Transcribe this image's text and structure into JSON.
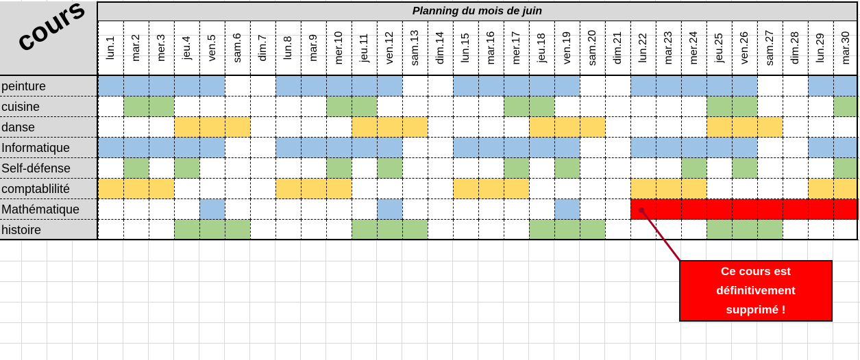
{
  "corner_title": "cours",
  "planning_title": "Planning du mois de juin",
  "days": [
    "lun.1",
    "mar.2",
    "mer.3",
    "jeu.4",
    "ven.5",
    "sam.6",
    "dim.7",
    "lun.8",
    "mar.9",
    "mer.10",
    "jeu.11",
    "ven.12",
    "sam.13",
    "dim.14",
    "lun.15",
    "mar.16",
    "mer.17",
    "jeu.18",
    "ven.19",
    "sam.20",
    "dim.21",
    "lun.22",
    "mar.23",
    "mer.24",
    "jeu.25",
    "ven.26",
    "sam.27",
    "dim.28",
    "lun.29",
    "mar.30"
  ],
  "colors": {
    "B": "#9dc3e6",
    "G": "#a9d18e",
    "Y": "#ffd966",
    "R": "#ff0000",
    "header_gray": "#d9d9d9"
  },
  "courses": [
    {
      "name": "peinture",
      "pattern": "BBBBB..BBBBB..BBBBB..BBBBB..BB"
    },
    {
      "name": "cuisine",
      "pattern": ".GG......GG.....GG......GG...G"
    },
    {
      "name": "danse",
      "pattern": "...YYY....YYY....YYY....YYY..."
    },
    {
      "name": "Informatique",
      "pattern": "BBBBB..BBBBB..BBBBB..BBBBB..BB"
    },
    {
      "name": "Self-défense",
      "pattern": ".G.G.....G.G....G.G....G.G...G"
    },
    {
      "name": "comptablilité",
      "pattern": "YYY....YYY....YYY....YYY....YY"
    },
    {
      "name": "Mathématique",
      "pattern": "....B......B......B..RRRRRRRRR"
    },
    {
      "name": "histoire",
      "pattern": "...GGG....GGG....GGG....GGG..."
    }
  ],
  "callout": {
    "text": "Ce cours est\ndéfinitivement\nsupprimé !"
  }
}
